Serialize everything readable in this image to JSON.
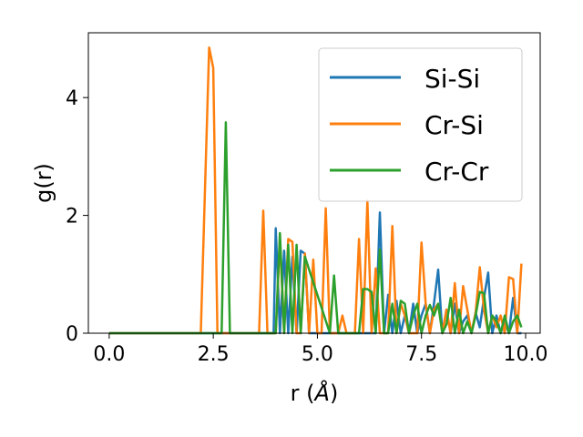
{
  "chart_data": {
    "type": "line",
    "xlabel_main": "r (",
    "xlabel_unit": "Å",
    "xlabel_close": ")",
    "ylabel": "g(r)",
    "xlim": [
      -0.5,
      10.35
    ],
    "ylim": [
      0,
      5.1
    ],
    "xticks": [
      0.0,
      2.5,
      5.0,
      7.5,
      10.0
    ],
    "xtick_labels": [
      "0.0",
      "2.5",
      "5.0",
      "7.5",
      "10.0"
    ],
    "yticks": [
      0,
      2,
      4
    ],
    "ytick_labels": [
      "0",
      "2",
      "4"
    ],
    "grid": false,
    "legend_position": "top-right",
    "series": [
      {
        "name": "Si-Si",
        "color": "#1f77b4",
        "x": [
          0,
          3.95,
          4.0,
          4.1,
          4.2,
          4.3,
          4.4,
          4.5,
          4.6,
          4.7,
          4.8,
          4.9,
          5.6,
          6.4,
          6.5,
          6.6,
          6.7,
          6.8,
          6.9,
          7.0,
          7.1,
          7.2,
          7.3,
          7.4,
          7.5,
          7.6,
          7.7,
          7.8,
          7.9,
          8.0,
          8.1,
          8.2,
          8.3,
          8.4,
          8.5,
          8.6,
          8.7,
          8.8,
          8.9,
          9.0,
          9.1,
          9.2,
          9.3,
          9.4,
          9.5,
          9.6,
          9.7,
          9.8,
          9.9
        ],
        "y": [
          0,
          0,
          1.78,
          0,
          1.4,
          0,
          1.3,
          0,
          1.4,
          1.35,
          0,
          0,
          0,
          0,
          2.05,
          0,
          0.65,
          0,
          0.55,
          0,
          0.3,
          0,
          0.5,
          0,
          0.3,
          0.5,
          0,
          0.5,
          1.08,
          0,
          0.4,
          0,
          0.5,
          0,
          0.2,
          0.3,
          0,
          0.35,
          0.1,
          0.6,
          1.03,
          0,
          0.3,
          0,
          0.2,
          0,
          0.6,
          0,
          0
        ]
      },
      {
        "name": "Cr-Si",
        "color": "#ff7f0e",
        "x": [
          0,
          2.2,
          2.4,
          2.5,
          2.6,
          3.6,
          3.7,
          3.8,
          4.0,
          4.1,
          4.2,
          4.3,
          4.4,
          4.5,
          4.6,
          4.7,
          4.8,
          4.9,
          5.0,
          5.1,
          5.2,
          5.3,
          5.5,
          5.6,
          5.7,
          5.8,
          5.9,
          6.0,
          6.1,
          6.2,
          6.3,
          6.4,
          6.5,
          6.6,
          6.7,
          6.8,
          6.9,
          7.0,
          7.1,
          7.2,
          7.3,
          7.4,
          7.5,
          7.6,
          7.7,
          7.8,
          7.9,
          8.0,
          8.1,
          8.2,
          8.3,
          8.4,
          8.5,
          8.6,
          8.7,
          8.8,
          8.9,
          9.0,
          9.1,
          9.2,
          9.3,
          9.4,
          9.5,
          9.6,
          9.7,
          9.8,
          9.9
        ],
        "y": [
          0,
          0,
          4.85,
          4.5,
          0,
          0,
          2.08,
          0,
          0,
          1.6,
          0,
          1.6,
          1.55,
          0,
          0,
          1.35,
          0,
          1.25,
          0,
          0,
          2.12,
          0,
          0,
          0.3,
          0,
          0,
          0,
          1.6,
          0,
          2.25,
          0,
          1.1,
          0,
          0,
          0,
          1.82,
          0,
          0.5,
          0.3,
          0,
          0,
          0,
          1.54,
          0.5,
          0,
          0.4,
          0.5,
          0,
          0.4,
          0,
          0.85,
          0,
          0.8,
          0.4,
          0,
          0.35,
          1.12,
          0.4,
          0,
          0.3,
          0.1,
          0.3,
          0,
          0.95,
          0.92,
          0,
          1.18
        ]
      },
      {
        "name": "Cr-Cr",
        "color": "#2ca02c",
        "x": [
          0,
          2.7,
          2.8,
          2.9,
          4.0,
          4.1,
          4.2,
          4.3,
          4.4,
          4.5,
          4.6,
          4.7,
          5.3,
          5.4,
          5.5,
          6.0,
          6.1,
          6.2,
          6.3,
          6.4,
          6.5,
          6.6,
          6.7,
          6.8,
          6.9,
          7.0,
          7.1,
          7.2,
          7.3,
          7.4,
          7.5,
          7.6,
          7.7,
          7.8,
          7.9,
          8.0,
          8.1,
          8.2,
          8.3,
          8.4,
          8.5,
          8.6,
          8.7,
          8.8,
          8.9,
          9.0,
          9.1,
          9.2,
          9.3,
          9.4,
          9.5,
          9.6,
          9.7,
          9.8,
          9.9
        ],
        "y": [
          0,
          0,
          3.58,
          0,
          0,
          1.7,
          0,
          1.5,
          0,
          1.5,
          0,
          1.3,
          0,
          0.98,
          0,
          0,
          0.75,
          0.75,
          0.7,
          0,
          1.42,
          0,
          0,
          0.5,
          0,
          0.55,
          0.5,
          0,
          0.3,
          0.5,
          0,
          0.3,
          0.48,
          0.3,
          0.5,
          0,
          0.15,
          0.6,
          0,
          0.4,
          0,
          0.2,
          0,
          0.3,
          0.7,
          0.68,
          0,
          0.3,
          0.2,
          0,
          0.3,
          0,
          0.2,
          0.3,
          0.1
        ]
      }
    ]
  }
}
